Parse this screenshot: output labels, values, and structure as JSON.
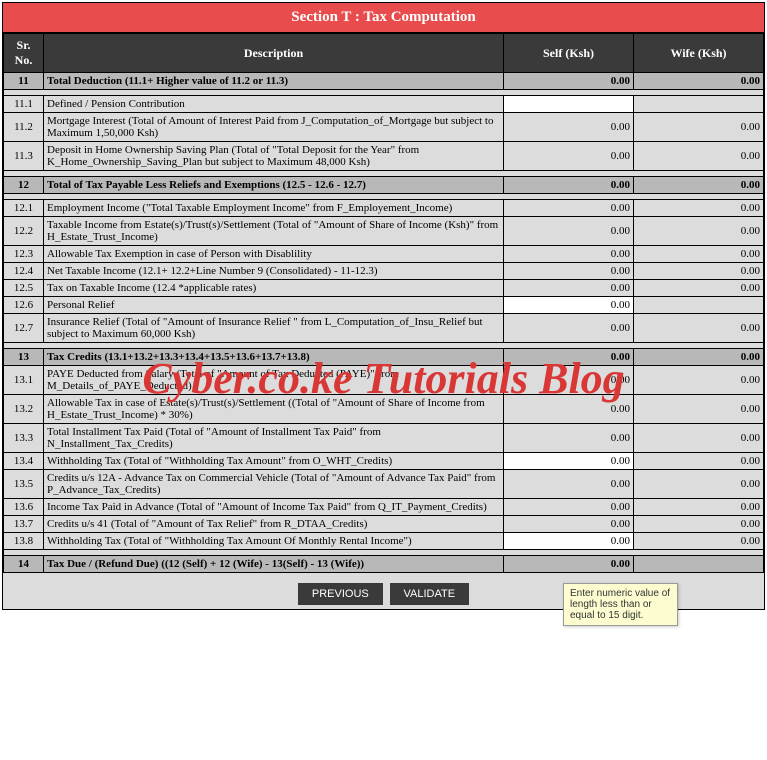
{
  "section_title": "Section T : Tax Computation",
  "columns": {
    "sr": "Sr. No.",
    "desc": "Description",
    "self": "Self (Ksh)",
    "wife": "Wife (Ksh)"
  },
  "rows": [
    {
      "type": "head",
      "sr": "11",
      "desc": "Total Deduction (11.1+ Higher value of 11.2 or 11.3)",
      "self": "0.00",
      "wife": "0.00"
    },
    {
      "type": "spacer"
    },
    {
      "type": "sub",
      "sr": "11.1",
      "desc": "Defined / Pension Contribution",
      "self": "",
      "wife": "",
      "self_input": true
    },
    {
      "type": "sub",
      "sr": "11.2",
      "desc": "Mortgage Interest (Total of Amount of Interest Paid from J_Computation_of_Mortgage but subject to Maximum 1,50,000 Ksh)",
      "self": "0.00",
      "wife": "0.00"
    },
    {
      "type": "sub",
      "sr": "11.3",
      "desc": "Deposit in Home Ownership Saving Plan (Total of \"Total Deposit for the Year\" from K_Home_Ownership_Saving_Plan but subject to Maximum 48,000 Ksh)",
      "self": "0.00",
      "wife": "0.00"
    },
    {
      "type": "spacer"
    },
    {
      "type": "head",
      "sr": "12",
      "desc": "Total of Tax Payable Less Reliefs and Exemptions (12.5 - 12.6 - 12.7)",
      "self": "0.00",
      "wife": "0.00"
    },
    {
      "type": "spacer"
    },
    {
      "type": "sub",
      "sr": "12.1",
      "desc": "Employment Income (\"Total Taxable Employment Income\" from F_Employement_Income)",
      "self": "0.00",
      "wife": "0.00"
    },
    {
      "type": "sub",
      "sr": "12.2",
      "desc": "Taxable Income from Estate(s)/Trust(s)/Settlement (Total of \"Amount of Share of Income (Ksh)\" from H_Estate_Trust_Income)",
      "self": "0.00",
      "wife": "0.00"
    },
    {
      "type": "sub",
      "sr": "12.3",
      "desc": "Allowable Tax Exemption in case of Person with Disablility",
      "self": "0.00",
      "wife": "0.00"
    },
    {
      "type": "sub",
      "sr": "12.4",
      "desc": "Net Taxable Income (12.1+ 12.2+Line Number 9 (Consolidated) - 11-12.3)",
      "self": "0.00",
      "wife": "0.00"
    },
    {
      "type": "sub",
      "sr": "12.5",
      "desc": "Tax on Taxable Income (12.4 *applicable rates)",
      "self": "0.00",
      "wife": "0.00"
    },
    {
      "type": "sub",
      "sr": "12.6",
      "desc": "Personal Relief",
      "self": "0.00",
      "wife": "",
      "self_input": true
    },
    {
      "type": "sub",
      "sr": "12.7",
      "desc": "Insurance Relief (Total of \"Amount of Insurance Relief \" from L_Computation_of_Insu_Relief but subject to Maximum 60,000 Ksh)",
      "self": "0.00",
      "wife": "0.00"
    },
    {
      "type": "spacer"
    },
    {
      "type": "head",
      "sr": "13",
      "desc": "Tax Credits (13.1+13.2+13.3+13.4+13.5+13.6+13.7+13.8)",
      "self": "0.00",
      "wife": "0.00"
    },
    {
      "type": "sub",
      "sr": "13.1",
      "desc": "PAYE Deducted from Salary (Total of \"Amount of Tax Deducted (PAYE)\" from M_Details_of_PAYE_Deducted)",
      "self": "0.00",
      "wife": "0.00"
    },
    {
      "type": "sub",
      "sr": "13.2",
      "desc": "Allowable Tax in case of Estate(s)/Trust(s)/Settlement ((Total of \"Amount of Share of Income from H_Estate_Trust_Income) * 30%)",
      "self": "0.00",
      "wife": "0.00"
    },
    {
      "type": "sub",
      "sr": "13.3",
      "desc": "Total Installment Tax Paid (Total of \"Amount of Installment Tax Paid\" from N_Installment_Tax_Credits)",
      "self": "0.00",
      "wife": "0.00"
    },
    {
      "type": "sub",
      "sr": "13.4",
      "desc": "Withholding Tax (Total of \"Withholding Tax Amount\" from O_WHT_Credits)",
      "self": "0.00",
      "wife": "0.00",
      "self_input": true
    },
    {
      "type": "sub",
      "sr": "13.5",
      "desc": "Credits u/s 12A - Advance Tax on Commercial Vehicle (Total of \"Amount of Advance Tax Paid\" from P_Advance_Tax_Credits)",
      "self": "0.00",
      "wife": "0.00"
    },
    {
      "type": "sub",
      "sr": "13.6",
      "desc": "Income Tax Paid in Advance (Total of \"Amount of Income Tax Paid\" from Q_IT_Payment_Credits)",
      "self": "0.00",
      "wife": "0.00"
    },
    {
      "type": "sub",
      "sr": "13.7",
      "desc": "Credits u/s 41 (Total of \"Amount of Tax Relief\" from R_DTAA_Credits)",
      "self": "0.00",
      "wife": "0.00"
    },
    {
      "type": "sub",
      "sr": "13.8",
      "desc": " Withholding Tax (Total of \"Withholding Tax Amount Of Monthly Rental Income\")",
      "self": "0.00",
      "wife": "0.00",
      "self_input": true
    },
    {
      "type": "spacer"
    },
    {
      "type": "head",
      "sr": "14",
      "desc": "Tax Due / (Refund Due) ((12 (Self) + 12 (Wife) - 13(Self) - 13 (Wife))",
      "self": "0.00",
      "wife": ""
    }
  ],
  "buttons": {
    "previous": "PREVIOUS",
    "validate": "VALIDATE"
  },
  "watermark": "Cyber.co.ke Tutorials Blog",
  "tooltip": "Enter numeric value of length less than or equal to 15 digit.",
  "colors": {
    "header_bg": "#e84c4c",
    "th_bg": "#3a3a3a",
    "cell_bg": "#dcdcdc",
    "head_row_bg": "#b8b8b8",
    "input_bg": "#ffffff",
    "tooltip_bg": "#fcfcd0",
    "watermark_color": "#d93636"
  }
}
